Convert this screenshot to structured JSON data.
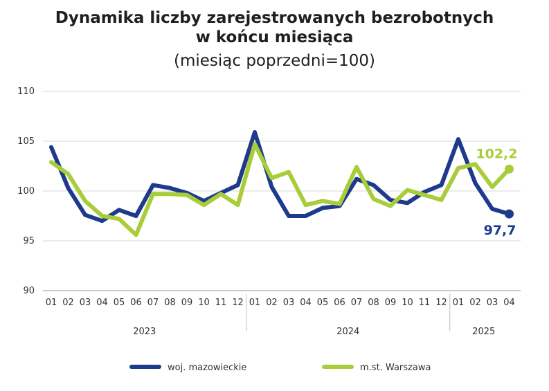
{
  "chart_data": {
    "type": "line",
    "title": "Dynamika liczby zarejestrowanych bezrobotnych",
    "title_line2": "w końcu miesiąca",
    "subtitle": "(miesiąc poprzedni=100)",
    "x": [
      "01",
      "02",
      "03",
      "04",
      "05",
      "06",
      "07",
      "08",
      "09",
      "10",
      "11",
      "12",
      "01",
      "02",
      "03",
      "04",
      "05",
      "06",
      "07",
      "08",
      "09",
      "10",
      "11",
      "12",
      "01",
      "02",
      "03",
      "04"
    ],
    "years": [
      {
        "label": "2023",
        "from": 0,
        "to": 11
      },
      {
        "label": "2024",
        "from": 12,
        "to": 23
      },
      {
        "label": "2025",
        "from": 24,
        "to": 27
      }
    ],
    "ylim": [
      90,
      110
    ],
    "yticks": [
      90,
      95,
      100,
      105,
      110
    ],
    "grid": true,
    "legend_position": "bottom",
    "series": [
      {
        "name": "woj. mazowieckie",
        "color": "#1e3a8c",
        "values": [
          104.4,
          100.3,
          97.6,
          97.0,
          98.1,
          97.5,
          100.6,
          100.3,
          99.8,
          99.0,
          99.8,
          100.6,
          105.9,
          100.4,
          97.5,
          97.5,
          98.3,
          98.5,
          101.2,
          100.6,
          99.1,
          98.8,
          99.9,
          100.6,
          105.2,
          100.8,
          98.2,
          97.7
        ],
        "end_label": "97,7"
      },
      {
        "name": "m.st. Warszawa",
        "color": "#a9cc3a",
        "values": [
          102.9,
          101.7,
          99.0,
          97.5,
          97.2,
          95.6,
          99.7,
          99.7,
          99.6,
          98.6,
          99.7,
          98.6,
          104.7,
          101.3,
          101.9,
          98.6,
          99.0,
          98.7,
          102.4,
          99.2,
          98.5,
          100.1,
          99.6,
          99.1,
          102.3,
          102.7,
          100.4,
          102.2
        ],
        "end_label": "102,2"
      }
    ]
  }
}
